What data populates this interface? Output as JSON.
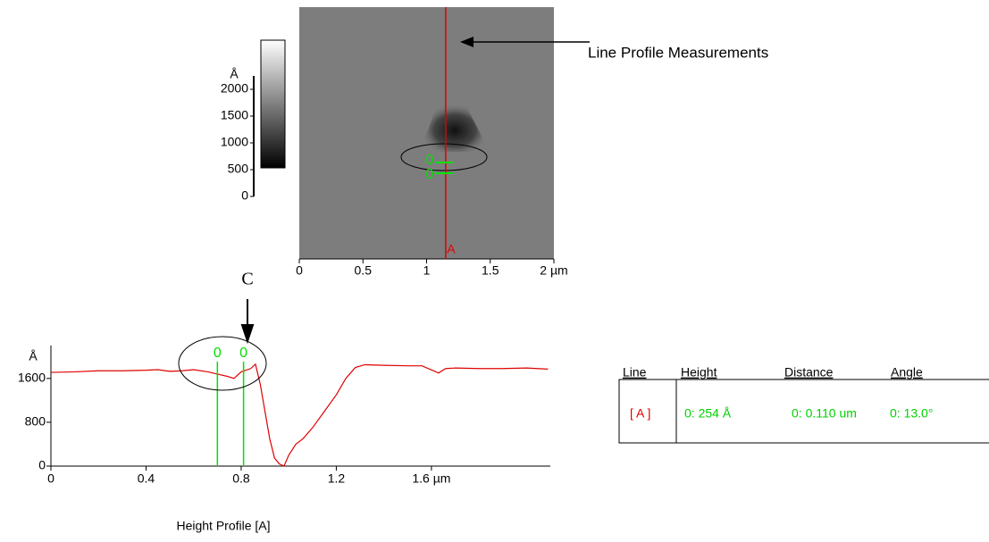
{
  "chart_data": [
    {
      "type": "image",
      "xlim": [
        0,
        2
      ],
      "xticks": [
        0,
        0.5,
        1,
        1.5,
        {
          "value": 2,
          "label": "2 µm"
        }
      ],
      "colorbar": {
        "unit": "Å",
        "lim": [
          0,
          2250
        ],
        "ticks": [
          0,
          500,
          1000,
          1500,
          2000
        ]
      },
      "profile_line": {
        "x": 1.15,
        "label": "A",
        "color": "#e00000"
      },
      "markers": [
        "0",
        "0"
      ]
    },
    {
      "type": "line",
      "y_unit": "Å",
      "x": [
        0,
        0.1,
        0.2,
        0.3,
        0.4,
        0.45,
        0.5,
        0.55,
        0.6,
        0.66,
        0.7,
        0.74,
        0.77,
        0.8,
        0.84,
        0.86,
        0.88,
        0.9,
        0.92,
        0.94,
        0.96,
        0.98,
        1.0,
        1.03,
        1.06,
        1.1,
        1.15,
        1.2,
        1.24,
        1.28,
        1.32,
        1.4,
        1.5,
        1.56,
        1.63,
        1.66,
        1.7,
        1.8,
        1.9,
        2.0,
        2.09
      ],
      "series": [
        {
          "name": "Height Profile [A]",
          "color": "#e00000",
          "values": [
            1710,
            1720,
            1740,
            1740,
            1750,
            1760,
            1730,
            1740,
            1760,
            1720,
            1680,
            1640,
            1600,
            1720,
            1780,
            1860,
            1500,
            1000,
            500,
            150,
            40,
            0,
            200,
            400,
            500,
            700,
            1000,
            1300,
            1600,
            1800,
            1850,
            1840,
            1830,
            1830,
            1700,
            1780,
            1790,
            1780,
            1780,
            1790,
            1770
          ]
        }
      ],
      "xlim": [
        0,
        2.1
      ],
      "xticks": [
        0,
        0.4,
        0.8,
        1.2,
        {
          "value": 1.6,
          "label": "1.6 µm"
        }
      ],
      "ylim": [
        0,
        2200
      ],
      "yticks": [
        0,
        800,
        1600
      ],
      "cursors": [
        {
          "x": 0.7,
          "label": "0"
        },
        {
          "x": 0.81,
          "label": "0"
        }
      ],
      "annotation": "C"
    }
  ],
  "callout": "Line Profile Measurements",
  "table": {
    "header": [
      "Line",
      "Height",
      "Distance",
      "Angle"
    ],
    "rows": [
      [
        "[ A ]",
        "0:  254 Å",
        "0:  0.110 um",
        "0:  13.0°"
      ]
    ]
  }
}
